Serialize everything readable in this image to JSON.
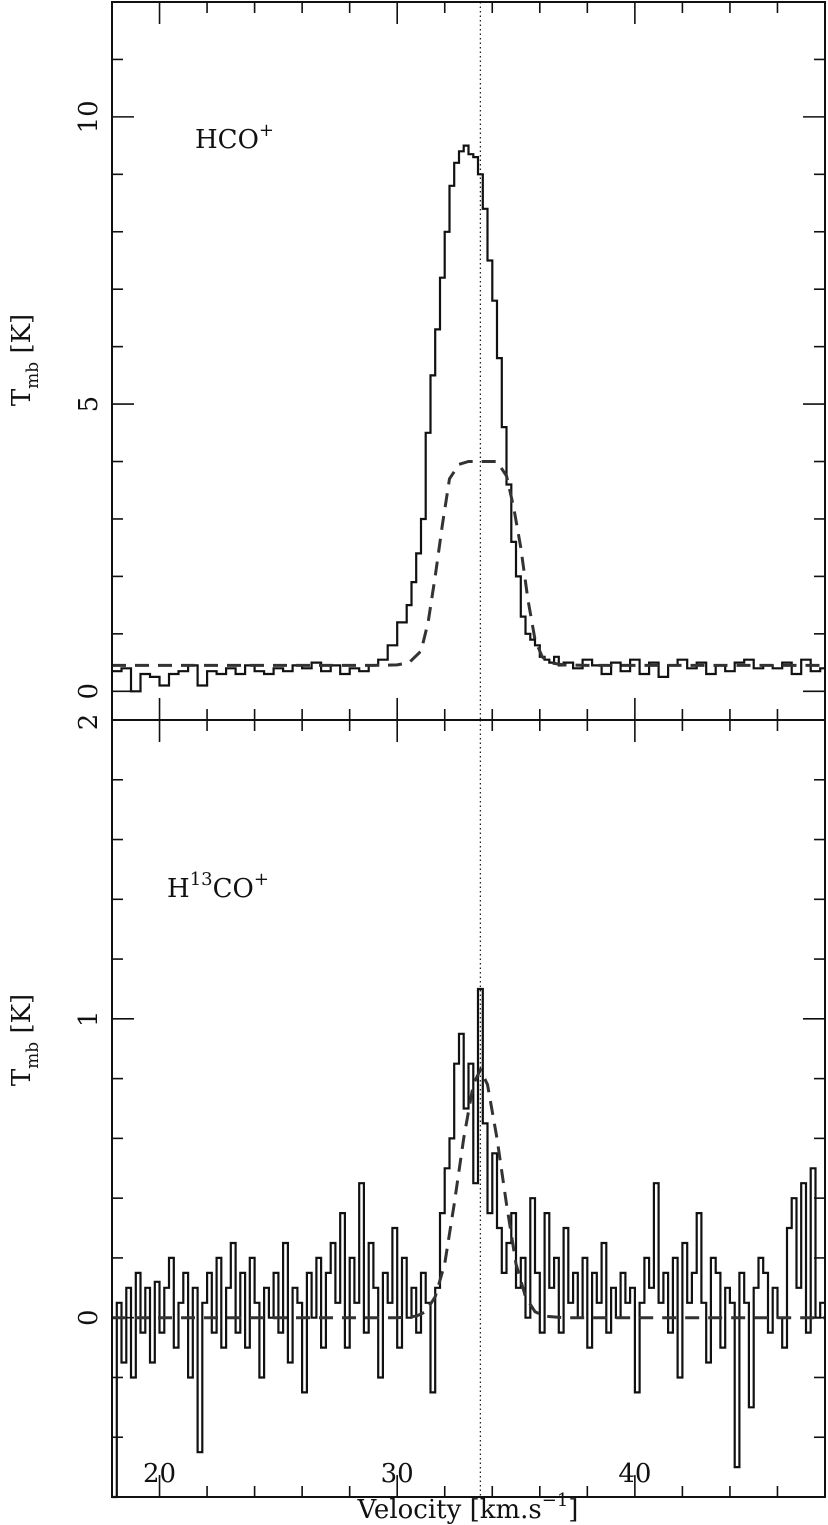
{
  "chart_data": [
    {
      "type": "line",
      "panel": "top",
      "annotation": {
        "main": "HCO",
        "sup": "+"
      },
      "ylabel": {
        "main": "T",
        "sub": "mb",
        "rest": " [K]"
      },
      "xlim": [
        18,
        48
      ],
      "ylim": [
        -0.5,
        12
      ],
      "yticks_major": [
        0,
        5,
        10
      ],
      "ytick_labels": [
        "0",
        "5",
        "10"
      ],
      "yticks_minor_step": 1,
      "vline_x": 33.5,
      "series": [
        {
          "style": "histogram",
          "x": [
            18.0,
            18.4,
            18.8,
            19.2,
            19.6,
            20.0,
            20.4,
            20.8,
            21.2,
            21.6,
            22.0,
            22.4,
            22.8,
            23.2,
            23.6,
            24.0,
            24.4,
            24.8,
            25.2,
            25.6,
            26.0,
            26.4,
            26.8,
            27.2,
            27.6,
            28.0,
            28.4,
            28.8,
            29.2,
            29.6,
            30.0,
            30.4,
            30.6,
            30.8,
            31.0,
            31.2,
            31.4,
            31.6,
            31.8,
            32.0,
            32.2,
            32.4,
            32.6,
            32.8,
            33.0,
            33.2,
            33.4,
            33.6,
            33.8,
            34.0,
            34.2,
            34.4,
            34.6,
            34.8,
            35.0,
            35.2,
            35.4,
            35.6,
            35.8,
            36.0,
            36.2,
            36.4,
            36.6,
            36.8,
            37.0,
            37.4,
            37.8,
            38.2,
            38.6,
            39.0,
            39.4,
            39.8,
            40.2,
            40.6,
            41.0,
            41.4,
            41.8,
            42.2,
            42.6,
            43.0,
            43.4,
            43.8,
            44.2,
            44.6,
            45.0,
            45.4,
            45.8,
            46.2,
            46.6,
            47.0,
            47.4,
            47.8
          ],
          "y": [
            0.35,
            0.4,
            0.0,
            0.3,
            0.25,
            0.1,
            0.3,
            0.35,
            0.45,
            0.1,
            0.35,
            0.3,
            0.4,
            0.3,
            0.45,
            0.35,
            0.3,
            0.4,
            0.35,
            0.45,
            0.4,
            0.5,
            0.35,
            0.45,
            0.3,
            0.4,
            0.35,
            0.45,
            0.55,
            0.8,
            1.2,
            1.5,
            1.9,
            2.4,
            3.0,
            4.5,
            5.5,
            6.3,
            7.2,
            8.0,
            8.8,
            9.2,
            9.4,
            9.5,
            9.35,
            9.3,
            9.0,
            8.4,
            7.5,
            6.8,
            5.8,
            4.6,
            3.6,
            2.6,
            2.0,
            1.3,
            1.0,
            0.9,
            0.8,
            0.6,
            0.55,
            0.5,
            0.6,
            0.45,
            0.5,
            0.4,
            0.55,
            0.45,
            0.3,
            0.5,
            0.35,
            0.55,
            0.3,
            0.5,
            0.25,
            0.45,
            0.55,
            0.4,
            0.5,
            0.3,
            0.45,
            0.35,
            0.5,
            0.55,
            0.4,
            0.45,
            0.4,
            0.5,
            0.3,
            0.55,
            0.35,
            0.4
          ]
        },
        {
          "style": "dashed",
          "x": [
            18.0,
            20.0,
            22.0,
            24.0,
            26.0,
            28.0,
            29.0,
            30.0,
            30.5,
            31.0,
            31.3,
            31.6,
            31.9,
            32.2,
            32.6,
            33.0,
            33.4,
            33.8,
            34.2,
            34.6,
            34.9,
            35.2,
            35.5,
            35.8,
            36.1,
            36.4,
            37.0,
            38.0,
            40.0,
            42.0,
            44.0,
            46.0,
            48.0
          ],
          "y": [
            0.45,
            0.45,
            0.45,
            0.45,
            0.45,
            0.45,
            0.45,
            0.46,
            0.5,
            0.7,
            1.2,
            2.0,
            2.9,
            3.7,
            3.95,
            4.0,
            4.0,
            4.0,
            4.0,
            3.75,
            3.2,
            2.5,
            1.6,
            0.9,
            0.6,
            0.5,
            0.46,
            0.45,
            0.45,
            0.45,
            0.45,
            0.45,
            0.45
          ]
        }
      ]
    },
    {
      "type": "line",
      "panel": "bottom",
      "annotation": {
        "main": "H",
        "sup": "13",
        "main2": "CO",
        "sup2": "+"
      },
      "ylabel": {
        "main": "T",
        "sub": "mb",
        "rest": " [K]"
      },
      "xlabel": {
        "main": "Velocity [km.s",
        "sup": "−1",
        "end": "]"
      },
      "xlim": [
        18,
        48
      ],
      "ylim": [
        -0.6,
        2.0
      ],
      "yticks_major": [
        0,
        1
      ],
      "ytick_labels": [
        "0",
        "1"
      ],
      "top_tick_label": "2",
      "yticks_minor_step": 0.2,
      "xticks_major": [
        20,
        30,
        40
      ],
      "xtick_labels": [
        "20",
        "30",
        "40"
      ],
      "xticks_minor_step": 2,
      "vline_x": 33.5,
      "series": [
        {
          "style": "histogram",
          "x": [
            18.0,
            18.2,
            18.4,
            18.6,
            18.8,
            19.0,
            19.2,
            19.4,
            19.6,
            19.8,
            20.0,
            20.2,
            20.4,
            20.6,
            20.8,
            21.0,
            21.2,
            21.4,
            21.6,
            21.8,
            22.0,
            22.2,
            22.4,
            22.6,
            22.8,
            23.0,
            23.2,
            23.4,
            23.6,
            23.8,
            24.0,
            24.2,
            24.4,
            24.6,
            24.8,
            25.0,
            25.2,
            25.4,
            25.6,
            25.8,
            26.0,
            26.2,
            26.4,
            26.6,
            26.8,
            27.0,
            27.2,
            27.4,
            27.6,
            27.8,
            28.0,
            28.2,
            28.4,
            28.6,
            28.8,
            29.0,
            29.2,
            29.4,
            29.6,
            29.8,
            30.0,
            30.2,
            30.4,
            30.6,
            30.8,
            31.0,
            31.2,
            31.4,
            31.6,
            31.8,
            32.0,
            32.2,
            32.4,
            32.6,
            32.8,
            33.0,
            33.2,
            33.4,
            33.6,
            33.8,
            34.0,
            34.2,
            34.4,
            34.6,
            34.8,
            35.0,
            35.2,
            35.4,
            35.6,
            35.8,
            36.0,
            36.2,
            36.4,
            36.6,
            36.8,
            37.0,
            37.2,
            37.4,
            37.6,
            37.8,
            38.0,
            38.2,
            38.4,
            38.6,
            38.8,
            39.0,
            39.2,
            39.4,
            39.6,
            39.8,
            40.0,
            40.2,
            40.4,
            40.6,
            40.8,
            41.0,
            41.2,
            41.4,
            41.6,
            41.8,
            42.0,
            42.2,
            42.4,
            42.6,
            42.8,
            43.0,
            43.2,
            43.4,
            43.6,
            43.8,
            44.0,
            44.2,
            44.4,
            44.6,
            44.8,
            45.0,
            45.2,
            45.4,
            45.6,
            45.8,
            46.0,
            46.2,
            46.4,
            46.6,
            46.8,
            47.0,
            47.2,
            47.4,
            47.6,
            47.8
          ],
          "y": [
            -0.6,
            0.05,
            -0.15,
            0.1,
            -0.2,
            0.15,
            -0.05,
            0.1,
            -0.15,
            0.12,
            -0.05,
            0.1,
            0.2,
            -0.1,
            0.05,
            0.15,
            -0.2,
            0.1,
            -0.45,
            0.05,
            0.15,
            -0.05,
            0.2,
            -0.1,
            0.1,
            0.25,
            -0.05,
            0.15,
            -0.1,
            0.2,
            0.05,
            -0.2,
            0.1,
            0.0,
            0.15,
            -0.05,
            0.25,
            -0.15,
            0.1,
            0.05,
            -0.25,
            0.15,
            0.0,
            0.2,
            -0.1,
            0.15,
            0.25,
            0.05,
            0.35,
            -0.1,
            0.2,
            0.05,
            0.45,
            -0.05,
            0.25,
            0.1,
            -0.2,
            0.15,
            0.05,
            0.3,
            -0.1,
            0.2,
            0.0,
            0.1,
            -0.05,
            0.15,
            0.05,
            -0.25,
            0.1,
            0.35,
            0.5,
            0.6,
            0.85,
            0.95,
            0.7,
            0.85,
            0.45,
            1.1,
            0.65,
            0.35,
            0.55,
            0.3,
            0.15,
            0.25,
            0.35,
            0.1,
            0.2,
            0.0,
            0.4,
            0.15,
            -0.05,
            0.35,
            0.1,
            0.2,
            -0.05,
            0.3,
            0.05,
            0.15,
            0.0,
            0.2,
            -0.1,
            0.15,
            0.05,
            0.25,
            -0.05,
            0.1,
            0.0,
            0.15,
            0.05,
            0.1,
            -0.25,
            0.05,
            0.2,
            0.1,
            0.45,
            0.05,
            0.15,
            -0.05,
            0.2,
            -0.2,
            0.25,
            0.05,
            0.15,
            0.35,
            0.05,
            -0.15,
            0.2,
            0.15,
            -0.1,
            0.1,
            0.05,
            -0.5,
            0.15,
            0.05,
            -0.3,
            0.1,
            0.2,
            0.15,
            -0.05,
            0.1,
            0.0,
            -0.1,
            0.3,
            0.4,
            0.1,
            0.45,
            -0.05,
            0.5,
            0.0,
            0.05
          ]
        },
        {
          "style": "dashed",
          "x": [
            18.0,
            20.0,
            22.0,
            24.0,
            26.0,
            28.0,
            30.0,
            30.8,
            31.2,
            31.6,
            32.0,
            32.4,
            32.8,
            33.2,
            33.5,
            33.8,
            34.2,
            34.6,
            35.0,
            35.4,
            35.8,
            36.2,
            37.0,
            38.0,
            40.0,
            42.0,
            44.0,
            46.0,
            48.0
          ],
          "y": [
            0.0,
            0.0,
            0.0,
            0.0,
            0.0,
            0.0,
            0.0,
            0.005,
            0.02,
            0.07,
            0.18,
            0.38,
            0.6,
            0.78,
            0.83,
            0.78,
            0.6,
            0.38,
            0.18,
            0.07,
            0.02,
            0.005,
            0.0,
            0.0,
            0.0,
            0.0,
            0.0,
            0.0,
            0.0
          ]
        }
      ]
    }
  ]
}
